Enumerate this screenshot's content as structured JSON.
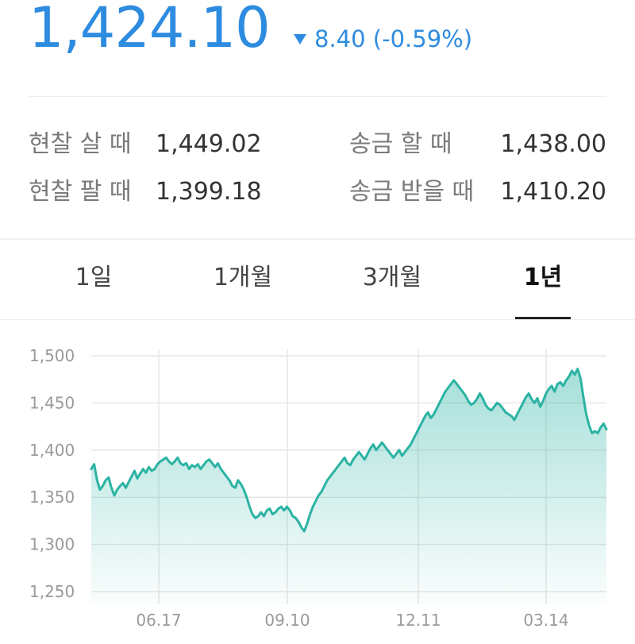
{
  "price": {
    "current": "1,424.10",
    "direction": "down",
    "change": "8.40",
    "change_pct": "(-0.59%)",
    "color": "#2e8ce0"
  },
  "rates": {
    "cash_buy_label": "현찰 살 때",
    "cash_buy_value": "1,449.02",
    "cash_sell_label": "현찰 팔 때",
    "cash_sell_value": "1,399.18",
    "send_label": "송금 할 때",
    "send_value": "1,438.00",
    "receive_label": "송금 받을 때",
    "receive_value": "1,410.20"
  },
  "tabs": [
    {
      "label": "1일",
      "active": false
    },
    {
      "label": "1개월",
      "active": false
    },
    {
      "label": "3개월",
      "active": false
    },
    {
      "label": "1년",
      "active": true
    }
  ],
  "chart_data": {
    "type": "area",
    "title": "",
    "xlabel": "",
    "ylabel": "",
    "ylim": [
      1250,
      1500
    ],
    "ytick_values": [
      1250,
      1300,
      1350,
      1400,
      1450,
      1500
    ],
    "yticks": [
      "1,250",
      "1,300",
      "1,350",
      "1,400",
      "1,450",
      "1,500"
    ],
    "xticks": [
      "06.17",
      "09.10",
      "12.11",
      "03.14"
    ],
    "grid": true,
    "line_color": "#2bb3a3",
    "series": [
      {
        "values": [
          1380,
          1385,
          1368,
          1358,
          1362,
          1368,
          1371,
          1360,
          1352,
          1358,
          1362,
          1365,
          1360,
          1366,
          1372,
          1378,
          1370,
          1375,
          1380,
          1376,
          1382,
          1378,
          1380,
          1385,
          1388,
          1390,
          1392,
          1388,
          1385,
          1388,
          1392,
          1386,
          1384,
          1386,
          1380,
          1384,
          1382,
          1385,
          1380,
          1384,
          1388,
          1390,
          1386,
          1382,
          1386,
          1380,
          1376,
          1372,
          1368,
          1362,
          1360,
          1368,
          1364,
          1358,
          1350,
          1340,
          1332,
          1328,
          1330,
          1334,
          1330,
          1336,
          1338,
          1332,
          1334,
          1338,
          1340,
          1336,
          1340,
          1336,
          1330,
          1328,
          1324,
          1318,
          1314,
          1322,
          1332,
          1340,
          1346,
          1352,
          1356,
          1362,
          1368,
          1372,
          1376,
          1380,
          1384,
          1388,
          1392,
          1386,
          1384,
          1390,
          1394,
          1398,
          1394,
          1390,
          1396,
          1402,
          1406,
          1400,
          1404,
          1408,
          1404,
          1400,
          1396,
          1392,
          1396,
          1400,
          1394,
          1398,
          1402,
          1406,
          1412,
          1418,
          1424,
          1430,
          1436,
          1440,
          1434,
          1438,
          1444,
          1450,
          1456,
          1462,
          1466,
          1470,
          1474,
          1470,
          1466,
          1462,
          1458,
          1452,
          1448,
          1450,
          1454,
          1460,
          1455,
          1448,
          1444,
          1442,
          1446,
          1450,
          1448,
          1444,
          1440,
          1438,
          1436,
          1432,
          1438,
          1444,
          1450,
          1456,
          1460,
          1454,
          1450,
          1455,
          1446,
          1452,
          1460,
          1465,
          1468,
          1462,
          1470,
          1472,
          1468,
          1474,
          1478,
          1484,
          1480,
          1486,
          1476,
          1456,
          1438,
          1426,
          1418,
          1420,
          1418,
          1424,
          1428,
          1422
        ]
      }
    ]
  }
}
